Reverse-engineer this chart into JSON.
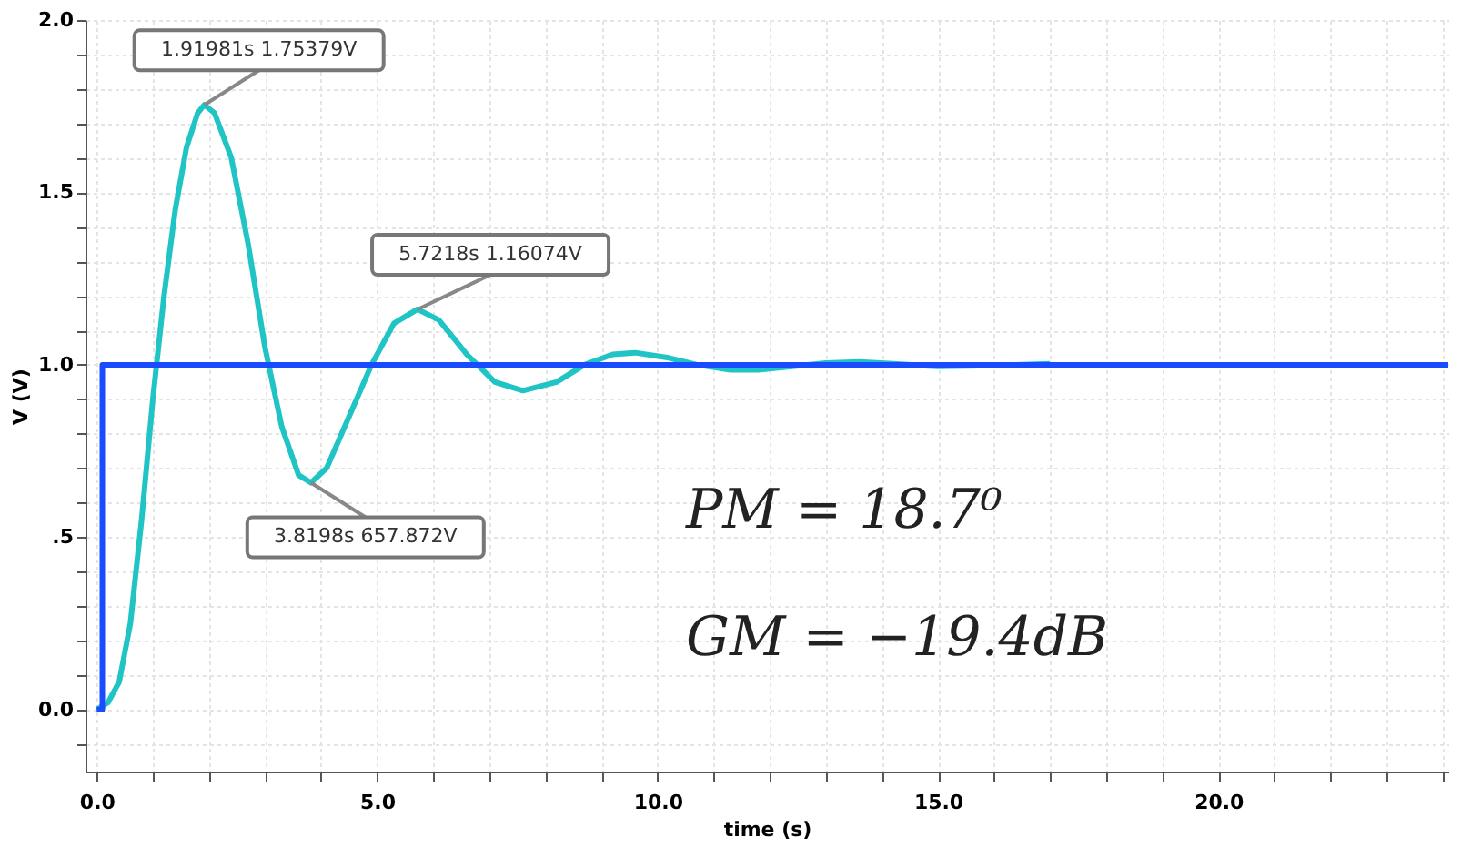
{
  "chart_data": {
    "type": "line",
    "xlabel": "time (s)",
    "ylabel": "V (V)",
    "xlim": [
      -0.2,
      24.1
    ],
    "ylim": [
      -0.18,
      2.0
    ],
    "xticks": [
      {
        "value": 0,
        "label": "0.0"
      },
      {
        "value": 1,
        "label": null
      },
      {
        "value": 2,
        "label": null
      },
      {
        "value": 3,
        "label": null
      },
      {
        "value": 4,
        "label": null
      },
      {
        "value": 5,
        "label": "5.0"
      },
      {
        "value": 6,
        "label": null
      },
      {
        "value": 7,
        "label": null
      },
      {
        "value": 8,
        "label": null
      },
      {
        "value": 9,
        "label": null
      },
      {
        "value": 10,
        "label": "10.0"
      },
      {
        "value": 11,
        "label": null
      },
      {
        "value": 12,
        "label": null
      },
      {
        "value": 13,
        "label": null
      },
      {
        "value": 14,
        "label": null
      },
      {
        "value": 15,
        "label": "15.0"
      },
      {
        "value": 16,
        "label": null
      },
      {
        "value": 17,
        "label": null
      },
      {
        "value": 18,
        "label": null
      },
      {
        "value": 19,
        "label": null
      },
      {
        "value": 20,
        "label": "20.0"
      },
      {
        "value": 21,
        "label": null
      },
      {
        "value": 22,
        "label": null
      },
      {
        "value": 23,
        "label": null
      },
      {
        "value": 24,
        "label": null
      }
    ],
    "yticks": [
      {
        "value": -0.1,
        "label": null
      },
      {
        "value": 0,
        "label": "0.0"
      },
      {
        "value": 0.1,
        "label": null
      },
      {
        "value": 0.2,
        "label": null
      },
      {
        "value": 0.3,
        "label": null
      },
      {
        "value": 0.4,
        "label": null
      },
      {
        "value": 0.5,
        "label": ".5"
      },
      {
        "value": 0.6,
        "label": null
      },
      {
        "value": 0.7,
        "label": null
      },
      {
        "value": 0.8,
        "label": null
      },
      {
        "value": 0.9,
        "label": null
      },
      {
        "value": 1,
        "label": "1.0"
      },
      {
        "value": 1.1,
        "label": null
      },
      {
        "value": 1.2,
        "label": null
      },
      {
        "value": 1.3,
        "label": null
      },
      {
        "value": 1.4,
        "label": null
      },
      {
        "value": 1.5,
        "label": "1.5"
      },
      {
        "value": 1.6,
        "label": null
      },
      {
        "value": 1.7,
        "label": null
      },
      {
        "value": 1.8,
        "label": null
      },
      {
        "value": 1.9,
        "label": null
      },
      {
        "value": 2,
        "label": "2.0"
      }
    ],
    "grid": true,
    "marker": "none",
    "line_style": "solid",
    "series": [
      {
        "color": "#20c4c4",
        "x": [
          0,
          0.2,
          0.4,
          0.6,
          0.8,
          1.0,
          1.2,
          1.4,
          1.6,
          1.8,
          1.92,
          2.1,
          2.4,
          2.7,
          3.0,
          3.3,
          3.6,
          3.82,
          4.1,
          4.5,
          4.9,
          5.3,
          5.72,
          6.1,
          6.6,
          7.1,
          7.6,
          8.2,
          8.7,
          9.2,
          9.6,
          10.2,
          10.7,
          11.3,
          11.8,
          12.4,
          13.0,
          13.6,
          14.2,
          15.0,
          16.0,
          17.0
        ],
        "values": [
          0.0,
          0.02,
          0.08,
          0.25,
          0.55,
          0.9,
          1.2,
          1.45,
          1.63,
          1.73,
          1.754,
          1.73,
          1.6,
          1.35,
          1.05,
          0.82,
          0.68,
          0.658,
          0.7,
          0.85,
          1.0,
          1.12,
          1.161,
          1.13,
          1.03,
          0.95,
          0.925,
          0.95,
          1.0,
          1.03,
          1.035,
          1.02,
          1.0,
          0.985,
          0.985,
          0.995,
          1.005,
          1.008,
          1.003,
          0.995,
          0.998,
          1.003
        ]
      },
      {
        "color": "#1a4cff",
        "x": [
          0,
          0.1,
          0.1,
          24.1
        ],
        "values": [
          0,
          0,
          1,
          1
        ]
      }
    ],
    "annotations": [
      {
        "text": "1.91981s 1.75379V",
        "x": 1.91981,
        "y": 1.75379
      },
      {
        "text": "5.7218s 1.16074V",
        "x": 5.7218,
        "y": 1.16074
      },
      {
        "text": "3.8198s 657.872V",
        "x": 3.8198,
        "y": 0.658
      },
      "PM = 18.7⁰",
      "GM = −19.4dB"
    ]
  }
}
